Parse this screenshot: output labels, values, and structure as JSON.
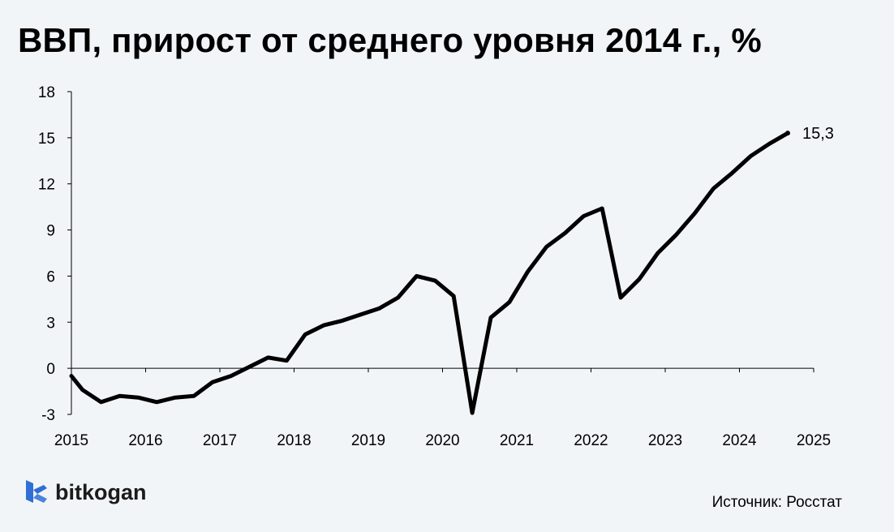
{
  "chart_data": {
    "type": "line",
    "title": "ВВП, прирост от среднего уровня 2014 г., %",
    "xlabel": "",
    "ylabel": "",
    "xlim": [
      2015,
      2025
    ],
    "ylim": [
      -3,
      18
    ],
    "y_ticks": [
      "18",
      "15",
      "12",
      "9",
      "6",
      "3",
      "0",
      "-3"
    ],
    "x_ticks": [
      "2015",
      "2016",
      "2017",
      "2018",
      "2019",
      "2020",
      "2021",
      "2022",
      "2023",
      "2024",
      "2025"
    ],
    "grid": false,
    "line_color": "#000000",
    "end_label": "15,3",
    "series": [
      {
        "x": [
          2015.0,
          2015.15,
          2015.4,
          2015.65,
          2015.9,
          2016.15,
          2016.4,
          2016.65,
          2016.9,
          2017.15,
          2017.4,
          2017.65,
          2017.9,
          2018.15,
          2018.4,
          2018.65,
          2018.9,
          2019.15,
          2019.4,
          2019.65,
          2019.9,
          2020.15,
          2020.4,
          2020.65,
          2020.9,
          2021.15,
          2021.4,
          2021.65,
          2021.9,
          2022.15,
          2022.4,
          2022.65,
          2022.9,
          2023.15,
          2023.4,
          2023.65,
          2023.9,
          2024.15,
          2024.4,
          2024.65
        ],
        "values": [
          -0.5,
          -1.4,
          -2.2,
          -1.8,
          -1.9,
          -2.2,
          -1.9,
          -1.8,
          -0.9,
          -0.5,
          0.1,
          0.7,
          0.5,
          2.2,
          2.8,
          3.1,
          3.5,
          3.9,
          4.6,
          6.0,
          5.7,
          4.7,
          -2.9,
          3.3,
          4.3,
          6.3,
          7.9,
          8.8,
          9.9,
          10.4,
          4.6,
          5.8,
          7.5,
          8.7,
          10.1,
          11.7,
          12.7,
          13.8,
          14.6,
          15.3
        ]
      }
    ]
  },
  "brand": {
    "name": "bitkogan",
    "icon": "bitkogan-logo-icon",
    "color": "#2f6fd6"
  },
  "source": "Источник: Росстат"
}
